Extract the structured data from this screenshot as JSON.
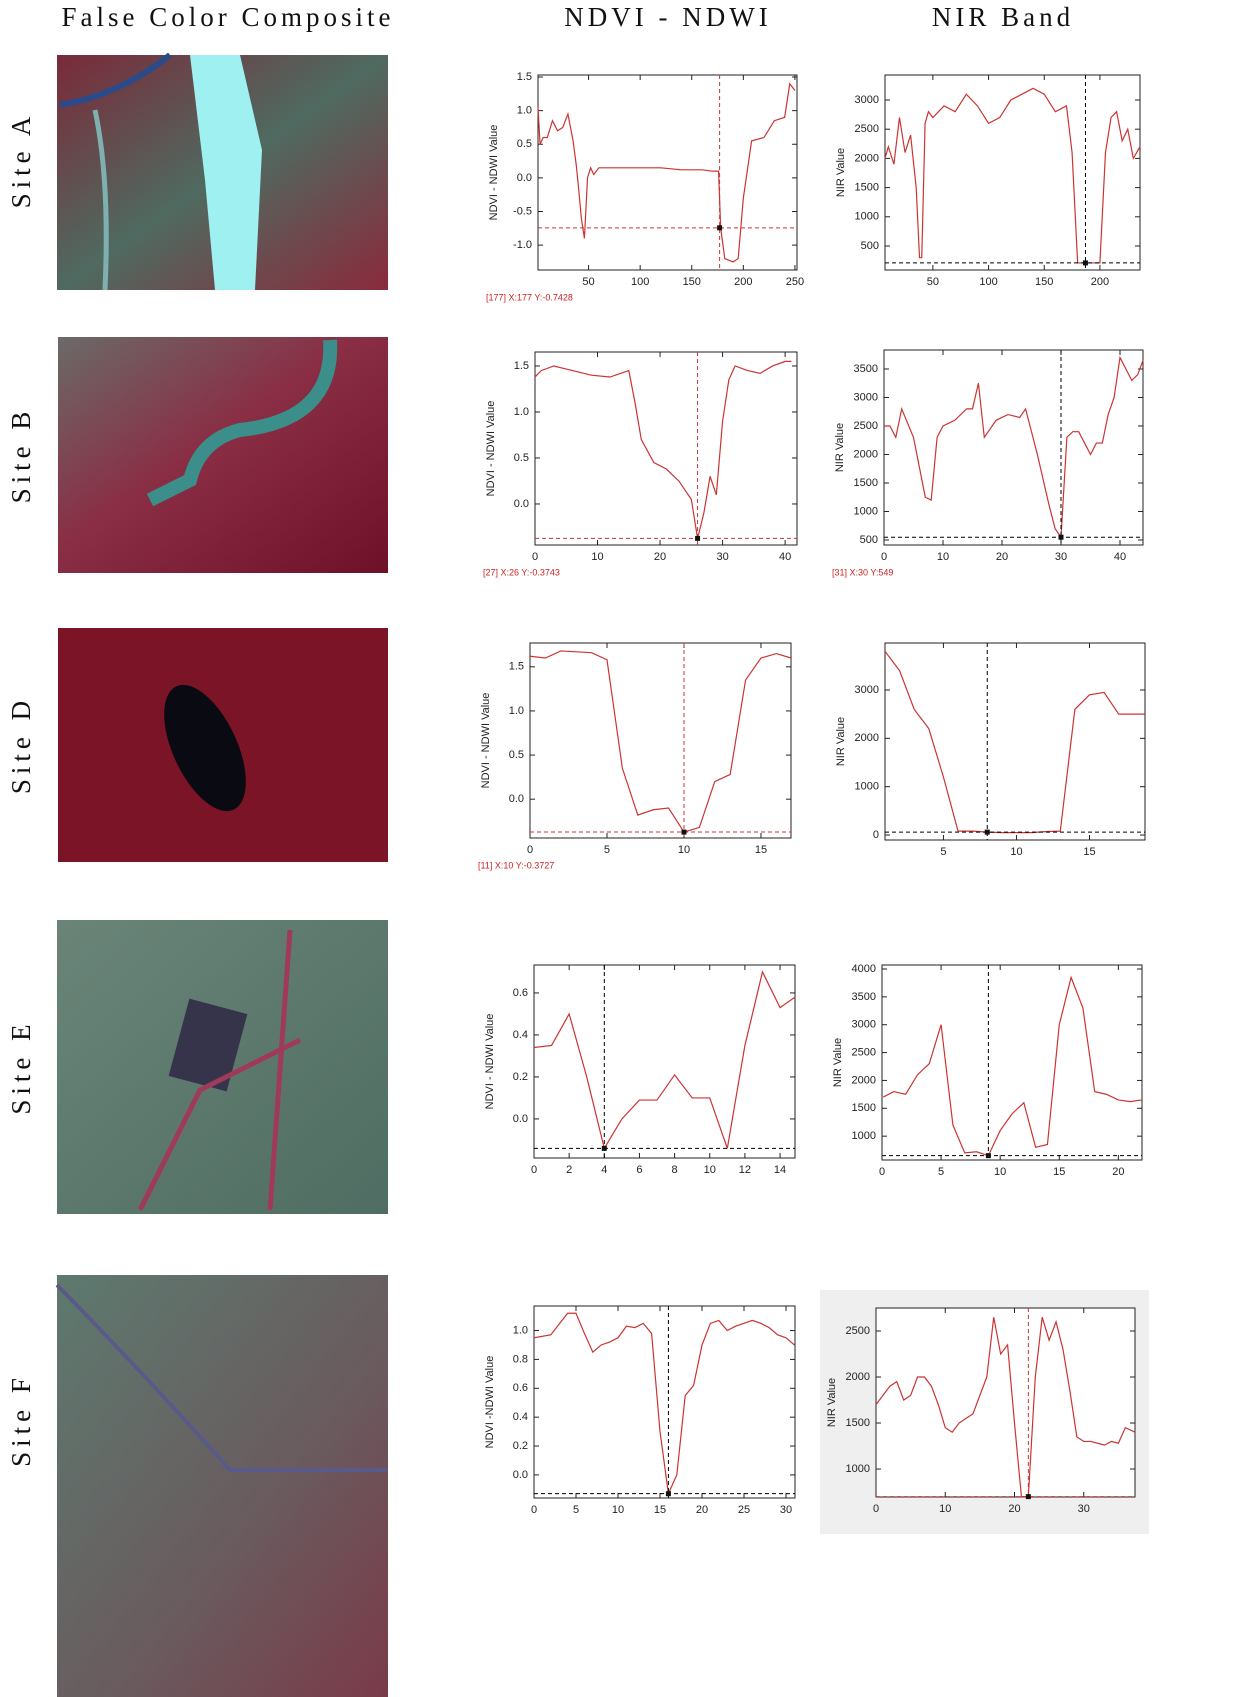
{
  "column_titles": [
    "False Color Composite",
    "NDVI - NDWI",
    "NIR Band"
  ],
  "row_labels": [
    "Site A",
    "Site B",
    "Site D",
    "Site E",
    "Site F"
  ],
  "chart_data": [
    {
      "type": "line",
      "ylabel": "NDVI - NDWI Value",
      "color": "#cc3333",
      "annotation": "[177] X:177 Y:-0.7428",
      "x": [
        1,
        3,
        6,
        10,
        15,
        20,
        25,
        30,
        35,
        38,
        40,
        43,
        46,
        49,
        52,
        55,
        60,
        80,
        100,
        120,
        140,
        160,
        170,
        176,
        178,
        182,
        190,
        195,
        200,
        208,
        220,
        230,
        240,
        245,
        250
      ],
      "values": [
        1.05,
        0.5,
        0.6,
        0.6,
        0.85,
        0.7,
        0.75,
        0.95,
        0.55,
        0.2,
        -0.1,
        -0.6,
        -0.9,
        0.0,
        0.15,
        0.05,
        0.15,
        0.15,
        0.15,
        0.15,
        0.12,
        0.12,
        0.1,
        0.1,
        -0.74,
        -1.2,
        -1.25,
        -1.2,
        -0.3,
        0.55,
        0.6,
        0.85,
        0.9,
        1.4,
        1.3
      ],
      "xlim": [
        1,
        252
      ],
      "ylim": [
        -1.37,
        1.53
      ],
      "xticks": [
        50,
        100,
        150,
        200,
        250
      ],
      "yticks": [
        {
          "value": -1,
          "label": "-1.0"
        },
        -0.5,
        {
          "value": 0,
          "label": "0.0"
        },
        0.5,
        {
          "value": 1,
          "label": "1.0"
        },
        1.5
      ],
      "crosshair": {
        "x": 177,
        "y": -0.7428
      },
      "crosshair_color": "#cc3333"
    },
    {
      "type": "line",
      "ylabel": "NIR Value",
      "color": "#cc3333",
      "x": [
        7,
        10,
        15,
        20,
        25,
        30,
        35,
        38,
        40,
        43,
        46,
        50,
        60,
        70,
        80,
        90,
        100,
        110,
        120,
        130,
        140,
        150,
        160,
        170,
        175,
        180,
        183,
        190,
        195,
        200,
        205,
        210,
        215,
        220,
        225,
        230,
        236
      ],
      "values": [
        2000,
        2200,
        1900,
        2700,
        2100,
        2400,
        1500,
        300,
        300,
        2600,
        2800,
        2700,
        2900,
        2800,
        3100,
        2900,
        2600,
        2700,
        3000,
        3100,
        3200,
        3100,
        2800,
        2900,
        2100,
        210,
        210,
        210,
        210,
        210,
        2100,
        2700,
        2800,
        2300,
        2500,
        2000,
        2200
      ],
      "xlim": [
        7,
        236
      ],
      "ylim": [
        89,
        3428
      ],
      "xticks": [
        50,
        100,
        150,
        200
      ],
      "yticks": [
        500,
        1000,
        1500,
        2000,
        2500,
        3000
      ],
      "crosshair": {
        "x": 187,
        "y": 210
      },
      "crosshair_color": "#000000"
    },
    {
      "type": "line",
      "ylabel": "NDVI - NDWI Value",
      "color": "#cc3333",
      "annotation": "[27] X:26 Y:-0.3743",
      "x": [
        0,
        1,
        3,
        6,
        9,
        12,
        15,
        16,
        17,
        19,
        21,
        23,
        25,
        26,
        27,
        28,
        29,
        30,
        31,
        32,
        34,
        36,
        38,
        40,
        41
      ],
      "values": [
        1.38,
        1.45,
        1.5,
        1.45,
        1.4,
        1.38,
        1.45,
        1.1,
        0.7,
        0.45,
        0.38,
        0.25,
        0.05,
        -0.3743,
        -0.1,
        0.3,
        0.1,
        0.9,
        1.35,
        1.5,
        1.45,
        1.42,
        1.5,
        1.55,
        1.55
      ],
      "xlim": [
        0,
        41.9
      ],
      "ylim": [
        -0.446,
        1.652
      ],
      "xticks": [
        0,
        10,
        20,
        30,
        40
      ],
      "yticks": [
        {
          "value": 0,
          "label": "0.0"
        },
        0.5,
        {
          "value": 1,
          "label": "1.0"
        },
        1.5
      ],
      "crosshair": {
        "x": 26,
        "y": -0.3743
      },
      "crosshair_color": "#cc3333"
    },
    {
      "type": "line",
      "ylabel": "NIR Value",
      "color": "#cc3333",
      "annotation": "[31] X:30 Y:549",
      "x": [
        0,
        1,
        2,
        3,
        5,
        7,
        8,
        9,
        10,
        12,
        14,
        15,
        16,
        17,
        19,
        21,
        23,
        24,
        26,
        28,
        29,
        30,
        31,
        32,
        33,
        34,
        35,
        36,
        37,
        38,
        39,
        40,
        41,
        42,
        43,
        43.9
      ],
      "values": [
        2500,
        2500,
        2300,
        2800,
        2300,
        1250,
        1200,
        2300,
        2500,
        2600,
        2800,
        2800,
        3250,
        2300,
        2600,
        2700,
        2650,
        2800,
        2000,
        1100,
        700,
        549,
        2300,
        2400,
        2400,
        2200,
        2000,
        2200,
        2200,
        2700,
        3000,
        3700,
        3500,
        3300,
        3400,
        3650
      ],
      "xlim": [
        0,
        43.9
      ],
      "ylim": [
        412,
        3833
      ],
      "xticks": [
        0,
        10,
        20,
        30,
        40
      ],
      "yticks": [
        500,
        1000,
        1500,
        2000,
        2500,
        3000,
        3500
      ],
      "crosshair": {
        "x": 30,
        "y": 549
      },
      "crosshair_color": "#000000"
    },
    {
      "type": "line",
      "ylabel": "NDVI - NDWI Value",
      "color": "#cc3333",
      "annotation": "[11] X:10 Y:-0.3727",
      "x": [
        0,
        1,
        2,
        3,
        4,
        5,
        6,
        7,
        8,
        9,
        10,
        11,
        12,
        13,
        14,
        15,
        16,
        16.95
      ],
      "values": [
        1.62,
        1.6,
        1.68,
        1.67,
        1.66,
        1.58,
        0.35,
        -0.18,
        -0.12,
        -0.1,
        -0.3727,
        -0.32,
        0.2,
        0.28,
        1.35,
        1.6,
        1.65,
        1.6
      ],
      "xlim": [
        0,
        16.95
      ],
      "ylim": [
        -0.44,
        1.77
      ],
      "xticks": [
        0,
        5,
        10,
        15
      ],
      "yticks": [
        {
          "value": 0,
          "label": "0.0"
        },
        0.5,
        {
          "value": 1,
          "label": "1.0"
        },
        1.5
      ],
      "crosshair": {
        "x": 10,
        "y": -0.3727
      },
      "crosshair_color": "#cc3333"
    },
    {
      "type": "line",
      "ylabel": "NIR Value",
      "color": "#cc3333",
      "x": [
        1,
        2,
        3,
        4,
        5,
        6,
        7,
        8,
        9,
        10,
        11,
        12,
        13,
        14,
        15,
        16,
        17,
        18,
        18.8
      ],
      "values": [
        3800,
        3400,
        2600,
        2200,
        1200,
        80,
        80,
        60,
        50,
        50,
        50,
        70,
        80,
        2600,
        2900,
        2950,
        2500,
        2500,
        2500
      ],
      "xlim": [
        1,
        18.8
      ],
      "ylim": [
        -103,
        3972
      ],
      "xticks": [
        5,
        10,
        15
      ],
      "yticks": [
        0,
        1000,
        2000,
        3000
      ],
      "crosshair": {
        "x": 8,
        "y": 60
      },
      "crosshair_color": "#000000"
    },
    {
      "type": "line",
      "ylabel": "NDVI - NDWI Value",
      "color": "#cc3333",
      "x": [
        0,
        1,
        2,
        3,
        4,
        5,
        6,
        7,
        8,
        9,
        10,
        11,
        12,
        13,
        14,
        14.85
      ],
      "values": [
        0.34,
        0.35,
        0.5,
        0.2,
        -0.14,
        0.0,
        0.09,
        0.09,
        0.21,
        0.1,
        0.1,
        -0.14,
        0.35,
        0.7,
        0.53,
        0.58
      ],
      "xlim": [
        0,
        14.85
      ],
      "ylim": [
        -0.186,
        0.733
      ],
      "xticks": [
        0,
        2,
        4,
        6,
        8,
        10,
        12,
        14
      ],
      "yticks": [
        {
          "value": 0,
          "label": "0.0"
        },
        0.2,
        0.4,
        0.6
      ],
      "crosshair": {
        "x": 4,
        "y": -0.14
      },
      "crosshair_color": "#000000"
    },
    {
      "type": "line",
      "ylabel": "NIR Value",
      "color": "#cc3333",
      "x": [
        0.1,
        1,
        2,
        3,
        4,
        5,
        6,
        7,
        8,
        9,
        10,
        11,
        12,
        13,
        14,
        15,
        16,
        17,
        18,
        19,
        20,
        21,
        22
      ],
      "values": [
        1700,
        1800,
        1750,
        2100,
        2300,
        3000,
        1200,
        700,
        720,
        650,
        1100,
        1400,
        1600,
        800,
        850,
        3000,
        3850,
        3300,
        1800,
        1750,
        1650,
        1620,
        1650
      ],
      "xlim": [
        0,
        22
      ],
      "ylim": [
        572,
        4072
      ],
      "xticks": [
        0,
        5,
        10,
        15,
        20
      ],
      "yticks": [
        1000,
        1500,
        2000,
        2500,
        3000,
        3500,
        4000
      ],
      "crosshair": {
        "x": 9,
        "y": 650
      },
      "crosshair_color": "#000000"
    },
    {
      "type": "line",
      "ylabel": "NDVI -NDWI Value",
      "color": "#cc3333",
      "x": [
        0,
        2,
        4,
        5,
        6,
        7,
        8,
        9,
        10,
        11,
        12,
        13,
        14,
        15,
        16,
        17,
        18,
        19,
        20,
        21,
        22,
        23,
        24,
        25,
        26,
        27,
        28,
        29,
        30,
        31
      ],
      "values": [
        0.95,
        0.97,
        1.12,
        1.12,
        0.98,
        0.85,
        0.9,
        0.92,
        0.95,
        1.03,
        1.02,
        1.05,
        0.98,
        0.3,
        -0.13,
        0.0,
        0.55,
        0.62,
        0.9,
        1.05,
        1.07,
        1.0,
        1.03,
        1.05,
        1.07,
        1.05,
        1.02,
        0.97,
        0.95,
        0.9
      ],
      "xlim": [
        0,
        31.07
      ],
      "ylim": [
        -0.16,
        1.17
      ],
      "xticks": [
        0,
        5,
        10,
        15,
        20,
        25,
        30
      ],
      "yticks": [
        {
          "value": 0,
          "label": "0.0"
        },
        0.2,
        0.4,
        0.6,
        0.8,
        {
          "value": 1,
          "label": "1.0"
        }
      ],
      "crosshair": {
        "x": 16,
        "y": -0.13
      },
      "crosshair_color": "#000000"
    },
    {
      "type": "line",
      "ylabel": "NIR Value",
      "color": "#cc3333",
      "background": "#efefef",
      "x": [
        0,
        1,
        2,
        3,
        4,
        5,
        6,
        7,
        8,
        9,
        10,
        11,
        12,
        13,
        14,
        16,
        17,
        18,
        19,
        20,
        21,
        22,
        23,
        24,
        25,
        26,
        27,
        28,
        29,
        30,
        31,
        32,
        33,
        34,
        35,
        36,
        37.4
      ],
      "values": [
        1700,
        1800,
        1900,
        1950,
        1750,
        1800,
        2000,
        2000,
        1900,
        1700,
        1450,
        1400,
        1500,
        1550,
        1600,
        2000,
        2650,
        2250,
        2350,
        1500,
        700,
        700,
        2000,
        2650,
        2400,
        2600,
        2300,
        1850,
        1350,
        1300,
        1300,
        1280,
        1260,
        1300,
        1280,
        1450,
        1400
      ],
      "xlim": [
        0,
        37.4
      ],
      "ylim": [
        696,
        2750
      ],
      "xticks": [
        0,
        10,
        20,
        30
      ],
      "yticks": [
        1000,
        1500,
        2000,
        2500
      ],
      "crosshair": {
        "x": 22,
        "y": 700
      },
      "crosshair_color": "#cc3333"
    }
  ]
}
